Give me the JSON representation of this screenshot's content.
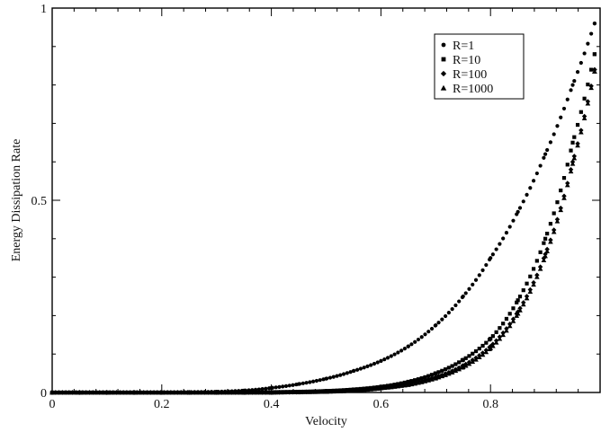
{
  "chart_data": {
    "type": "scatter",
    "title": "",
    "xlabel": "Velocity",
    "ylabel": "Energy Dissipation Rate",
    "xlim": [
      0,
      1
    ],
    "ylim": [
      0,
      1
    ],
    "x_ticks": [
      0,
      0.2,
      0.4,
      0.6,
      0.8
    ],
    "x_tick_labels": [
      "0",
      "0.2",
      "0.4",
      "0.6",
      "0.8"
    ],
    "y_ticks": [
      0,
      0.5,
      1
    ],
    "y_tick_labels": [
      "0",
      "0.5",
      "1"
    ],
    "grid": false,
    "legend_position": "top-right",
    "x": [
      0.0,
      0.05,
      0.1,
      0.15,
      0.2,
      0.25,
      0.3,
      0.35,
      0.4,
      0.45,
      0.5,
      0.55,
      0.6,
      0.65,
      0.7,
      0.75,
      0.8,
      0.85,
      0.9,
      0.95,
      0.99
    ],
    "series": [
      {
        "name": "R=1",
        "marker": "circle",
        "values": [
          0.0,
          0.0,
          0.0,
          0.0,
          0.0,
          0.001,
          0.002,
          0.005,
          0.012,
          0.022,
          0.036,
          0.056,
          0.082,
          0.12,
          0.175,
          0.25,
          0.35,
          0.47,
          0.62,
          0.8,
          0.96
        ]
      },
      {
        "name": "R=10",
        "marker": "square",
        "values": [
          0.0,
          0.0,
          0.0,
          0.0,
          0.0,
          0.0,
          0.0,
          0.0,
          0.001,
          0.002,
          0.004,
          0.008,
          0.015,
          0.028,
          0.05,
          0.085,
          0.14,
          0.24,
          0.4,
          0.65,
          0.88
        ]
      },
      {
        "name": "R=100",
        "marker": "diamond",
        "values": [
          0.0,
          0.0,
          0.0,
          0.0,
          0.0,
          0.0,
          0.0,
          0.0,
          0.0,
          0.001,
          0.003,
          0.006,
          0.012,
          0.022,
          0.04,
          0.07,
          0.12,
          0.21,
          0.36,
          0.6,
          0.84
        ]
      },
      {
        "name": "R=1000",
        "marker": "triangle",
        "values": [
          0.0,
          0.0,
          0.0,
          0.0,
          0.0,
          0.0,
          0.0,
          0.0,
          0.0,
          0.001,
          0.002,
          0.005,
          0.011,
          0.02,
          0.037,
          0.066,
          0.115,
          0.205,
          0.355,
          0.595,
          0.835
        ]
      }
    ]
  }
}
